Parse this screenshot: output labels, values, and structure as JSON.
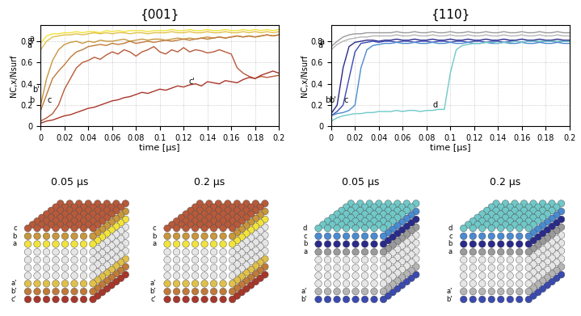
{
  "chart_data": [
    {
      "type": "line",
      "title": "{001}",
      "xlabel": "time [µs]",
      "ylabel": "NC,x/Nsurf",
      "xlim": [
        0,
        0.2
      ],
      "xticks": [
        0,
        0.02,
        0.04,
        0.06,
        0.08,
        0.1,
        0.12,
        0.14,
        0.16,
        0.18,
        0.2
      ],
      "ylim": [
        0,
        0.95
      ],
      "yticks": [
        0,
        0.2,
        0.4,
        0.6,
        0.8
      ],
      "grid": true,
      "x": [
        0,
        0.005,
        0.01,
        0.015,
        0.02,
        0.025,
        0.03,
        0.035,
        0.04,
        0.045,
        0.05,
        0.055,
        0.06,
        0.065,
        0.07,
        0.075,
        0.08,
        0.085,
        0.09,
        0.095,
        0.1,
        0.105,
        0.11,
        0.115,
        0.12,
        0.125,
        0.13,
        0.135,
        0.14,
        0.145,
        0.15,
        0.155,
        0.16,
        0.165,
        0.17,
        0.175,
        0.18,
        0.185,
        0.19,
        0.195,
        0.2
      ],
      "series": [
        {
          "name": "a",
          "color": "#f2e33c",
          "values": [
            0.78,
            0.85,
            0.87,
            0.87,
            0.88,
            0.88,
            0.89,
            0.88,
            0.89,
            0.89,
            0.88,
            0.9,
            0.89,
            0.9,
            0.89,
            0.9,
            0.9,
            0.9,
            0.89,
            0.9,
            0.9,
            0.9,
            0.91,
            0.9,
            0.9,
            0.91,
            0.9,
            0.9,
            0.91,
            0.9,
            0.9,
            0.91,
            0.9,
            0.9,
            0.91,
            0.9,
            0.91,
            0.9,
            0.91,
            0.9,
            0.91
          ]
        },
        {
          "name": "a'",
          "color": "#e0c04a",
          "values": [
            0.72,
            0.8,
            0.84,
            0.85,
            0.86,
            0.86,
            0.87,
            0.86,
            0.87,
            0.88,
            0.87,
            0.88,
            0.87,
            0.88,
            0.88,
            0.87,
            0.88,
            0.88,
            0.87,
            0.88,
            0.88,
            0.88,
            0.89,
            0.88,
            0.88,
            0.89,
            0.88,
            0.88,
            0.89,
            0.88,
            0.88,
            0.89,
            0.88,
            0.88,
            0.89,
            0.88,
            0.89,
            0.88,
            0.89,
            0.88,
            0.89
          ]
        },
        {
          "name": "b",
          "color": "#c8963c",
          "values": [
            0.2,
            0.45,
            0.62,
            0.72,
            0.77,
            0.79,
            0.8,
            0.78,
            0.8,
            0.79,
            0.81,
            0.8,
            0.8,
            0.81,
            0.82,
            0.8,
            0.81,
            0.82,
            0.81,
            0.82,
            0.82,
            0.81,
            0.82,
            0.83,
            0.82,
            0.83,
            0.82,
            0.83,
            0.84,
            0.83,
            0.84,
            0.83,
            0.84,
            0.85,
            0.84,
            0.85,
            0.84,
            0.85,
            0.86,
            0.85,
            0.86
          ]
        },
        {
          "name": "b'",
          "color": "#c07a3a",
          "values": [
            0.15,
            0.3,
            0.45,
            0.52,
            0.58,
            0.65,
            0.7,
            0.72,
            0.75,
            0.76,
            0.77,
            0.76,
            0.78,
            0.77,
            0.78,
            0.8,
            0.78,
            0.79,
            0.8,
            0.79,
            0.8,
            0.81,
            0.8,
            0.81,
            0.82,
            0.81,
            0.82,
            0.83,
            0.82,
            0.83,
            0.84,
            0.83,
            0.84,
            0.85,
            0.84,
            0.85,
            0.84,
            0.85,
            0.86,
            0.85,
            0.86
          ]
        },
        {
          "name": "c",
          "color": "#b85a3a",
          "values": [
            0.05,
            0.08,
            0.12,
            0.2,
            0.35,
            0.45,
            0.55,
            0.6,
            0.62,
            0.65,
            0.63,
            0.67,
            0.7,
            0.68,
            0.72,
            0.7,
            0.66,
            0.7,
            0.72,
            0.75,
            0.7,
            0.68,
            0.72,
            0.7,
            0.74,
            0.7,
            0.72,
            0.71,
            0.69,
            0.7,
            0.72,
            0.7,
            0.68,
            0.55,
            0.5,
            0.47,
            0.45,
            0.47,
            0.46,
            0.47,
            0.48
          ]
        },
        {
          "name": "c'",
          "color": "#a8362a",
          "values": [
            0.03,
            0.05,
            0.06,
            0.08,
            0.1,
            0.11,
            0.13,
            0.15,
            0.17,
            0.18,
            0.2,
            0.22,
            0.24,
            0.25,
            0.27,
            0.28,
            0.3,
            0.32,
            0.31,
            0.33,
            0.35,
            0.34,
            0.36,
            0.38,
            0.37,
            0.39,
            0.4,
            0.38,
            0.42,
            0.41,
            0.4,
            0.43,
            0.42,
            0.41,
            0.44,
            0.46,
            0.45,
            0.48,
            0.5,
            0.52,
            0.5
          ]
        }
      ],
      "snapshots": [
        {
          "title": "0.05 µs",
          "top_layers": [
            "c",
            "b",
            "a"
          ],
          "bottom_layers": [
            "a'",
            "b'",
            "c'"
          ]
        },
        {
          "title": "0.2 µs",
          "top_layers": [
            "c",
            "b",
            "a"
          ],
          "bottom_layers": [
            "a'",
            "b'",
            "c'"
          ]
        }
      ]
    },
    {
      "type": "line",
      "title": "{110}",
      "xlabel": "time [µs]",
      "ylabel": "NC,x/Nsurf",
      "xlim": [
        0,
        0.2
      ],
      "xticks": [
        0,
        0.02,
        0.04,
        0.06,
        0.08,
        0.1,
        0.12,
        0.14,
        0.16,
        0.18,
        0.2
      ],
      "ylim": [
        0,
        0.95
      ],
      "yticks": [
        0,
        0.2,
        0.4,
        0.6,
        0.8
      ],
      "grid": true,
      "x": [
        0,
        0.005,
        0.01,
        0.015,
        0.02,
        0.025,
        0.03,
        0.035,
        0.04,
        0.045,
        0.05,
        0.055,
        0.06,
        0.065,
        0.07,
        0.075,
        0.08,
        0.085,
        0.09,
        0.095,
        0.1,
        0.105,
        0.11,
        0.115,
        0.12,
        0.125,
        0.13,
        0.135,
        0.14,
        0.145,
        0.15,
        0.155,
        0.16,
        0.165,
        0.17,
        0.175,
        0.18,
        0.185,
        0.19,
        0.195,
        0.2
      ],
      "series": [
        {
          "name": "a",
          "color": "#9a9a9a",
          "values": [
            0.75,
            0.8,
            0.84,
            0.86,
            0.87,
            0.87,
            0.88,
            0.88,
            0.88,
            0.88,
            0.88,
            0.89,
            0.88,
            0.88,
            0.89,
            0.88,
            0.88,
            0.89,
            0.88,
            0.88,
            0.89,
            0.88,
            0.88,
            0.89,
            0.88,
            0.88,
            0.89,
            0.88,
            0.88,
            0.89,
            0.88,
            0.88,
            0.89,
            0.88,
            0.88,
            0.89,
            0.88,
            0.88,
            0.89,
            0.88,
            0.88
          ]
        },
        {
          "name": "a'",
          "color": "#b5b5b5",
          "values": [
            0.72,
            0.77,
            0.8,
            0.82,
            0.83,
            0.84,
            0.84,
            0.85,
            0.85,
            0.85,
            0.85,
            0.86,
            0.85,
            0.85,
            0.86,
            0.85,
            0.85,
            0.86,
            0.85,
            0.85,
            0.86,
            0.85,
            0.85,
            0.86,
            0.85,
            0.85,
            0.86,
            0.85,
            0.85,
            0.86,
            0.85,
            0.85,
            0.86,
            0.85,
            0.85,
            0.86,
            0.85,
            0.85,
            0.86,
            0.85,
            0.85
          ]
        },
        {
          "name": "b",
          "color": "#2a2a8a",
          "values": [
            0.12,
            0.2,
            0.55,
            0.75,
            0.79,
            0.8,
            0.81,
            0.81,
            0.8,
            0.81,
            0.81,
            0.82,
            0.81,
            0.81,
            0.82,
            0.81,
            0.81,
            0.82,
            0.81,
            0.81,
            0.82,
            0.81,
            0.81,
            0.82,
            0.81,
            0.81,
            0.82,
            0.81,
            0.81,
            0.82,
            0.81,
            0.81,
            0.82,
            0.81,
            0.81,
            0.82,
            0.81,
            0.81,
            0.82,
            0.81,
            0.81
          ]
        },
        {
          "name": "b'",
          "color": "#3a4ab0",
          "values": [
            0.1,
            0.14,
            0.2,
            0.45,
            0.7,
            0.78,
            0.79,
            0.8,
            0.79,
            0.8,
            0.8,
            0.79,
            0.8,
            0.8,
            0.79,
            0.8,
            0.8,
            0.79,
            0.8,
            0.8,
            0.79,
            0.8,
            0.8,
            0.79,
            0.8,
            0.8,
            0.79,
            0.8,
            0.8,
            0.79,
            0.8,
            0.8,
            0.79,
            0.8,
            0.8,
            0.79,
            0.8,
            0.8,
            0.79,
            0.8,
            0.8
          ]
        },
        {
          "name": "c",
          "color": "#4a8ad0",
          "values": [
            0.1,
            0.12,
            0.13,
            0.15,
            0.2,
            0.55,
            0.72,
            0.76,
            0.77,
            0.78,
            0.78,
            0.79,
            0.78,
            0.78,
            0.79,
            0.78,
            0.78,
            0.79,
            0.78,
            0.78,
            0.79,
            0.78,
            0.78,
            0.79,
            0.78,
            0.78,
            0.79,
            0.78,
            0.78,
            0.79,
            0.78,
            0.78,
            0.79,
            0.78,
            0.78,
            0.79,
            0.78,
            0.78,
            0.79,
            0.78,
            0.78
          ]
        },
        {
          "name": "d",
          "color": "#70c8c8",
          "values": [
            0.05,
            0.08,
            0.1,
            0.11,
            0.12,
            0.12,
            0.13,
            0.13,
            0.14,
            0.14,
            0.14,
            0.15,
            0.14,
            0.15,
            0.15,
            0.14,
            0.15,
            0.15,
            0.16,
            0.16,
            0.5,
            0.72,
            0.76,
            0.77,
            0.78,
            0.78,
            0.79,
            0.79,
            0.78,
            0.79,
            0.79,
            0.8,
            0.79,
            0.8,
            0.8,
            0.8,
            0.8,
            0.8,
            0.8,
            0.8,
            0.8
          ]
        }
      ],
      "snapshots": [
        {
          "title": "0.05 µs",
          "top_layers": [
            "d",
            "c",
            "b",
            "a"
          ],
          "bottom_layers": [
            "a'",
            "b'"
          ]
        },
        {
          "title": "0.2 µs",
          "top_layers": [
            "d",
            "c",
            "b",
            "a"
          ],
          "bottom_layers": [
            "a'",
            "b'"
          ]
        }
      ]
    }
  ]
}
